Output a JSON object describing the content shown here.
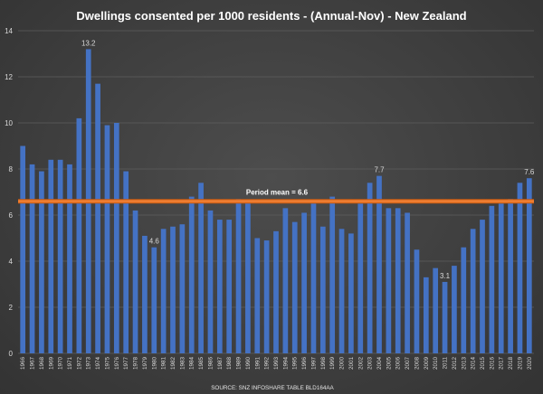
{
  "chart_data": {
    "type": "bar",
    "title": "Dwellings  consented  per 1000 residents  - (Annual-Nov)  - New Zealand",
    "source": "SOURCE: SNZ INFOSHARE TABLE BLD164AA",
    "ylim": [
      0,
      14
    ],
    "yticks": [
      "0",
      "2",
      "4",
      "6",
      "8",
      "10",
      "12",
      "14"
    ],
    "grid": true,
    "bar_color": "#4472c4",
    "mean_line": {
      "value": 6.6,
      "label": "Period mean = 6.6",
      "color": "#ed7d31"
    },
    "categories": [
      "1966",
      "1967",
      "1968",
      "1969",
      "1970",
      "1971",
      "1972",
      "1973",
      "1974",
      "1975",
      "1976",
      "1977",
      "1978",
      "1979",
      "1980",
      "1981",
      "1982",
      "1983",
      "1984",
      "1985",
      "1986",
      "1987",
      "1988",
      "1989",
      "1990",
      "1991",
      "1992",
      "1993",
      "1994",
      "1995",
      "1996",
      "1997",
      "1998",
      "1999",
      "2000",
      "2001",
      "2002",
      "2003",
      "2004",
      "2005",
      "2006",
      "2007",
      "2008",
      "2009",
      "2010",
      "2011",
      "2012",
      "2013",
      "2014",
      "2015",
      "2016",
      "2017",
      "2018",
      "2019",
      "2020"
    ],
    "values": [
      9.0,
      8.2,
      7.9,
      8.4,
      8.4,
      8.2,
      10.2,
      13.2,
      11.7,
      9.9,
      10.0,
      7.9,
      6.2,
      5.1,
      4.6,
      5.4,
      5.5,
      5.6,
      6.8,
      7.4,
      6.2,
      5.8,
      5.8,
      6.7,
      6.6,
      5.0,
      4.9,
      5.3,
      6.3,
      5.7,
      6.1,
      6.5,
      5.5,
      6.8,
      5.4,
      5.2,
      6.5,
      7.4,
      7.7,
      6.3,
      6.3,
      6.1,
      4.5,
      3.3,
      3.7,
      3.1,
      3.8,
      4.6,
      5.4,
      5.8,
      6.4,
      6.5,
      6.7,
      7.4,
      7.6
    ],
    "data_labels": [
      {
        "index": 7,
        "text": "13.2"
      },
      {
        "index": 14,
        "text": "4.6"
      },
      {
        "index": 38,
        "text": "7.7"
      },
      {
        "index": 45,
        "text": "3.1"
      },
      {
        "index": 54,
        "text": "7.6"
      }
    ]
  }
}
